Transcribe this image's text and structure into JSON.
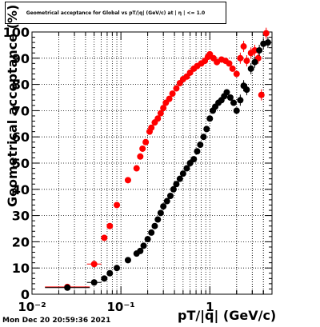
{
  "title": "Geometrical acceptance for Global vs pT/|q| (GeV/c) at | η | <= 1.0",
  "timestamp": "Mon Dec 20 20:59:36 2021",
  "chart_data": {
    "type": "scatter",
    "title": "Geometrical acceptance for Global vs pT/|q| (GeV/c) at | η | <= 1.0",
    "xlabel": "pT/|q| (GeV/c)",
    "ylabel": "Geometrical acceptance (%)",
    "xscale": "log",
    "xlim": [
      0.01,
      5.0
    ],
    "ylim": [
      0,
      100
    ],
    "grid": true,
    "x_ticks": [
      {
        "value": 0.01,
        "label": "10⁻²"
      },
      {
        "value": 0.1,
        "label": "10⁻¹"
      },
      {
        "value": 1,
        "label": "1"
      }
    ],
    "y_ticks": [
      0,
      10,
      20,
      30,
      40,
      50,
      60,
      70,
      80,
      90,
      100
    ],
    "colors": {
      "red_series": "#ff0000",
      "black_series": "#000000"
    },
    "series": [
      {
        "color": "red",
        "points": [
          [
            0.025,
            2.8
          ],
          [
            0.05,
            11.5
          ],
          [
            0.065,
            21.5
          ],
          [
            0.075,
            26
          ],
          [
            0.09,
            34
          ],
          [
            0.12,
            43.5
          ],
          [
            0.15,
            48
          ],
          [
            0.165,
            52.5
          ],
          [
            0.175,
            55.5
          ],
          [
            0.19,
            58
          ],
          [
            0.21,
            62
          ],
          [
            0.22,
            63.5
          ],
          [
            0.24,
            65.5
          ],
          [
            0.26,
            67
          ],
          [
            0.28,
            69
          ],
          [
            0.3,
            71
          ],
          [
            0.32,
            73
          ],
          [
            0.35,
            74.5
          ],
          [
            0.38,
            76.5
          ],
          [
            0.42,
            78.5
          ],
          [
            0.46,
            80.5
          ],
          [
            0.5,
            82
          ],
          [
            0.55,
            83
          ],
          [
            0.6,
            84.5
          ],
          [
            0.66,
            86
          ],
          [
            0.72,
            87
          ],
          [
            0.8,
            88
          ],
          [
            0.88,
            89
          ],
          [
            0.95,
            90.5
          ],
          [
            1.0,
            91.5
          ],
          [
            1.1,
            90
          ],
          [
            1.2,
            88.5
          ],
          [
            1.35,
            89.5
          ],
          [
            1.5,
            89
          ],
          [
            1.65,
            88
          ],
          [
            1.8,
            86
          ],
          [
            2.0,
            84
          ],
          [
            2.2,
            90
          ],
          [
            2.4,
            94.5
          ],
          [
            2.6,
            89
          ],
          [
            2.9,
            92
          ],
          [
            3.2,
            93
          ],
          [
            3.5,
            90
          ],
          [
            3.8,
            76
          ],
          [
            4.3,
            99.5
          ]
        ]
      },
      {
        "color": "black",
        "points": [
          [
            0.025,
            2.5
          ],
          [
            0.05,
            4.5
          ],
          [
            0.065,
            6
          ],
          [
            0.075,
            8
          ],
          [
            0.09,
            10
          ],
          [
            0.12,
            13
          ],
          [
            0.15,
            15.5
          ],
          [
            0.165,
            16.5
          ],
          [
            0.18,
            18.5
          ],
          [
            0.2,
            21
          ],
          [
            0.22,
            23.5
          ],
          [
            0.24,
            26
          ],
          [
            0.26,
            28.5
          ],
          [
            0.28,
            31
          ],
          [
            0.3,
            33.5
          ],
          [
            0.33,
            35.5
          ],
          [
            0.36,
            37.5
          ],
          [
            0.39,
            40
          ],
          [
            0.42,
            42
          ],
          [
            0.46,
            44
          ],
          [
            0.5,
            46
          ],
          [
            0.55,
            48
          ],
          [
            0.6,
            50
          ],
          [
            0.66,
            51.5
          ],
          [
            0.72,
            54.5
          ],
          [
            0.78,
            57
          ],
          [
            0.85,
            60
          ],
          [
            0.92,
            63
          ],
          [
            1.0,
            67
          ],
          [
            1.08,
            70
          ],
          [
            1.15,
            71.5
          ],
          [
            1.25,
            73
          ],
          [
            1.35,
            74
          ],
          [
            1.45,
            75.5
          ],
          [
            1.55,
            77
          ],
          [
            1.7,
            75
          ],
          [
            1.85,
            73
          ],
          [
            2.0,
            70
          ],
          [
            2.2,
            74
          ],
          [
            2.4,
            79.5
          ],
          [
            2.6,
            78
          ],
          [
            2.9,
            86
          ],
          [
            3.2,
            88.5
          ],
          [
            3.6,
            93
          ],
          [
            4.0,
            95.5
          ],
          [
            4.5,
            96
          ]
        ]
      }
    ]
  }
}
